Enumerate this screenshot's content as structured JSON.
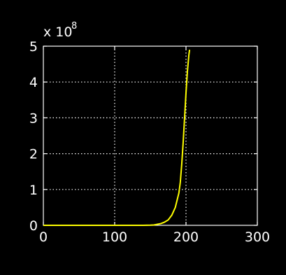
{
  "chart_data": {
    "type": "line",
    "background": "#000000",
    "axes_color": "#ffffff",
    "grid": true,
    "grid_style": "dotted",
    "xlim": [
      0,
      300
    ],
    "ylim": [
      0,
      5
    ],
    "x_ticks": [
      0,
      100,
      200,
      300
    ],
    "y_ticks": [
      0,
      1,
      2,
      3,
      4,
      5
    ],
    "x_tick_labels": [
      "0",
      "100",
      "200",
      "300"
    ],
    "y_tick_labels": [
      "0",
      "1",
      "2",
      "3",
      "4",
      "5"
    ],
    "y_multiplier_base": "x 10",
    "y_multiplier_exponent": "8",
    "title": "",
    "xlabel": "",
    "ylabel": "",
    "series": [
      {
        "color": "#ffff00",
        "x": [
          0,
          100,
          140,
          150,
          155,
          160,
          165,
          170,
          175,
          180,
          185,
          190,
          192,
          194,
          196,
          198,
          200,
          202,
          204,
          205
        ],
        "y": [
          0,
          0,
          0,
          0.005,
          0.01,
          0.03,
          0.05,
          0.09,
          0.15,
          0.28,
          0.5,
          0.9,
          1.2,
          1.7,
          2.3,
          3.0,
          3.7,
          4.3,
          4.75,
          4.9
        ]
      }
    ]
  }
}
